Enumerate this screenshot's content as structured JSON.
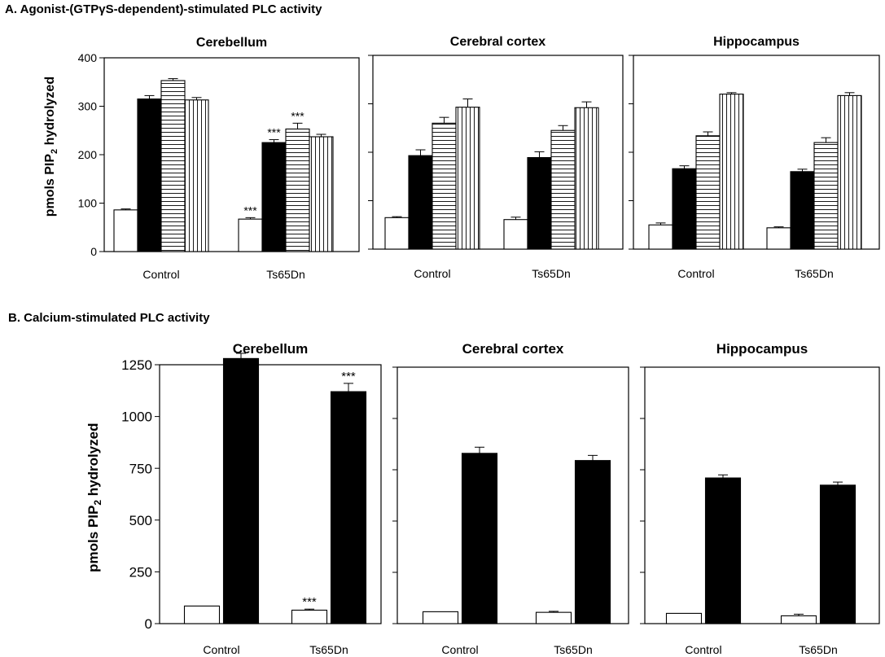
{
  "sectionA": {
    "title": "A. Agonist-(GTPγS-dependent)-stimulated PLC activity",
    "ylabel_main": "pmols PIP",
    "ylabel_sub": "2",
    "ylabel_rest": " hydrolyzed"
  },
  "sectionB": {
    "title": "B. Calcium-stimulated PLC activity",
    "ylabel_main": "pmols PIP",
    "ylabel_sub": "2",
    "ylabel_rest": " hydrolyzed"
  },
  "chart_data": [
    {
      "type": "bar",
      "section": "A",
      "title": "Cerebellum",
      "categories": [
        "Control",
        "Ts65Dn"
      ],
      "ylim": [
        0,
        400
      ],
      "yticks": [
        0,
        100,
        200,
        300,
        400
      ],
      "series": [
        {
          "pattern": "white",
          "values": [
            86,
            67
          ],
          "errors": [
            2,
            3
          ]
        },
        {
          "pattern": "black",
          "values": [
            315,
            225
          ],
          "errors": [
            7,
            6
          ]
        },
        {
          "pattern": "horizontal",
          "values": [
            353,
            253
          ],
          "errors": [
            4,
            12
          ]
        },
        {
          "pattern": "vertical",
          "values": [
            313,
            237
          ],
          "errors": [
            5,
            5
          ]
        }
      ],
      "annotations": [
        {
          "category": 1,
          "series": 0,
          "text": "***"
        },
        {
          "category": 1,
          "series": 1,
          "text": "***"
        },
        {
          "category": 1,
          "series": 2,
          "text": "***"
        }
      ]
    },
    {
      "type": "bar",
      "section": "A",
      "title": "Cerebral cortex",
      "categories": [
        "Control",
        "Ts65Dn"
      ],
      "ylim": [
        0,
        400
      ],
      "yticks": [
        0,
        100,
        200,
        300,
        400
      ],
      "series": [
        {
          "pattern": "white",
          "values": [
            65,
            61
          ],
          "errors": [
            2,
            5
          ]
        },
        {
          "pattern": "black",
          "values": [
            193,
            189
          ],
          "errors": [
            12,
            12
          ]
        },
        {
          "pattern": "horizontal",
          "values": [
            260,
            245
          ],
          "errors": [
            12,
            10
          ]
        },
        {
          "pattern": "vertical",
          "values": [
            293,
            292
          ],
          "errors": [
            17,
            12
          ]
        }
      ],
      "annotations": []
    },
    {
      "type": "bar",
      "section": "A",
      "title": "Hippocampus",
      "categories": [
        "Control",
        "Ts65Dn"
      ],
      "ylim": [
        0,
        400
      ],
      "yticks": [
        0,
        100,
        200,
        300,
        400
      ],
      "series": [
        {
          "pattern": "white",
          "values": [
            50,
            44
          ],
          "errors": [
            4,
            2
          ]
        },
        {
          "pattern": "black",
          "values": [
            166,
            160
          ],
          "errors": [
            6,
            5
          ]
        },
        {
          "pattern": "horizontal",
          "values": [
            234,
            220
          ],
          "errors": [
            8,
            10
          ]
        },
        {
          "pattern": "vertical",
          "values": [
            320,
            317
          ],
          "errors": [
            3,
            6
          ]
        }
      ],
      "annotations": []
    },
    {
      "type": "bar",
      "section": "B",
      "title": "Cerebellum",
      "categories": [
        "Control",
        "Ts65Dn"
      ],
      "ylim": [
        0,
        1250
      ],
      "yticks": [
        0,
        250,
        500,
        750,
        1000,
        1250
      ],
      "series": [
        {
          "pattern": "white",
          "values": [
            85,
            65
          ],
          "errors": [
            0,
            5
          ]
        },
        {
          "pattern": "black",
          "values": [
            1280,
            1120
          ],
          "errors": [
            25,
            40
          ]
        }
      ],
      "annotations": [
        {
          "category": 1,
          "series": 0,
          "text": "***"
        },
        {
          "category": 1,
          "series": 1,
          "text": "***"
        }
      ]
    },
    {
      "type": "bar",
      "section": "B",
      "title": "Cerebral cortex",
      "categories": [
        "Control",
        "Ts65Dn"
      ],
      "ylim": [
        0,
        1250
      ],
      "yticks": [
        0,
        250,
        500,
        750,
        1000,
        1250
      ],
      "series": [
        {
          "pattern": "white",
          "values": [
            58,
            55
          ],
          "errors": [
            0,
            5
          ]
        },
        {
          "pattern": "black",
          "values": [
            830,
            795
          ],
          "errors": [
            30,
            25
          ]
        }
      ],
      "annotations": []
    },
    {
      "type": "bar",
      "section": "B",
      "title": "Hippocampus",
      "categories": [
        "Control",
        "Ts65Dn"
      ],
      "ylim": [
        0,
        1250
      ],
      "yticks": [
        0,
        250,
        500,
        750,
        1000,
        1250
      ],
      "series": [
        {
          "pattern": "white",
          "values": [
            50,
            38
          ],
          "errors": [
            0,
            8
          ]
        },
        {
          "pattern": "black",
          "values": [
            710,
            675
          ],
          "errors": [
            15,
            15
          ]
        }
      ],
      "annotations": []
    }
  ]
}
